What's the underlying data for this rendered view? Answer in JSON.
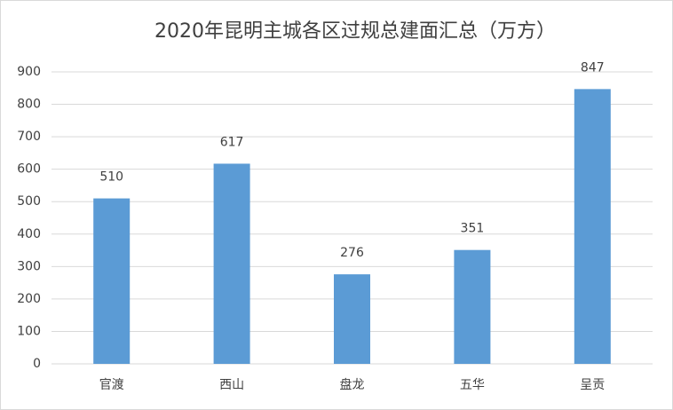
{
  "chart_data": {
    "type": "bar",
    "title": "2020年昆明主城各区过规总建面汇总（万方）",
    "categories": [
      "官渡",
      "西山",
      "盘龙",
      "五华",
      "呈贡"
    ],
    "values": [
      510,
      617,
      276,
      351,
      847
    ],
    "color": "#5b9bd5",
    "ylim": [
      0,
      900
    ],
    "yticks": [
      0,
      100,
      200,
      300,
      400,
      500,
      600,
      700,
      800,
      900
    ],
    "grid": true
  }
}
